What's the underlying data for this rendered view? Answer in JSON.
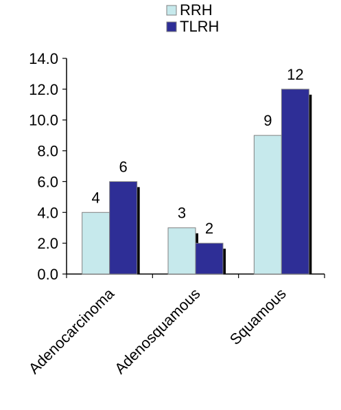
{
  "chart_data": {
    "type": "bar",
    "categories": [
      "Adenocarcinoma",
      "Adenosquamous",
      "Squamous"
    ],
    "series": [
      {
        "name": "RRH",
        "values": [
          4,
          3,
          9
        ],
        "color": "#c6e9ec"
      },
      {
        "name": "TLRH",
        "values": [
          6,
          2,
          12
        ],
        "color": "#2e2e96"
      }
    ],
    "data_labels": [
      [
        "4",
        "3",
        "9"
      ],
      [
        "6",
        "2",
        "12"
      ]
    ],
    "ylim": [
      0,
      14
    ],
    "yticks": [
      "0.0",
      "2.0",
      "4.0",
      "6.0",
      "8.0",
      "10.0",
      "12.0",
      "14.0"
    ],
    "grid": false,
    "legend_position": "top",
    "title": "",
    "xlabel": "",
    "ylabel": ""
  }
}
